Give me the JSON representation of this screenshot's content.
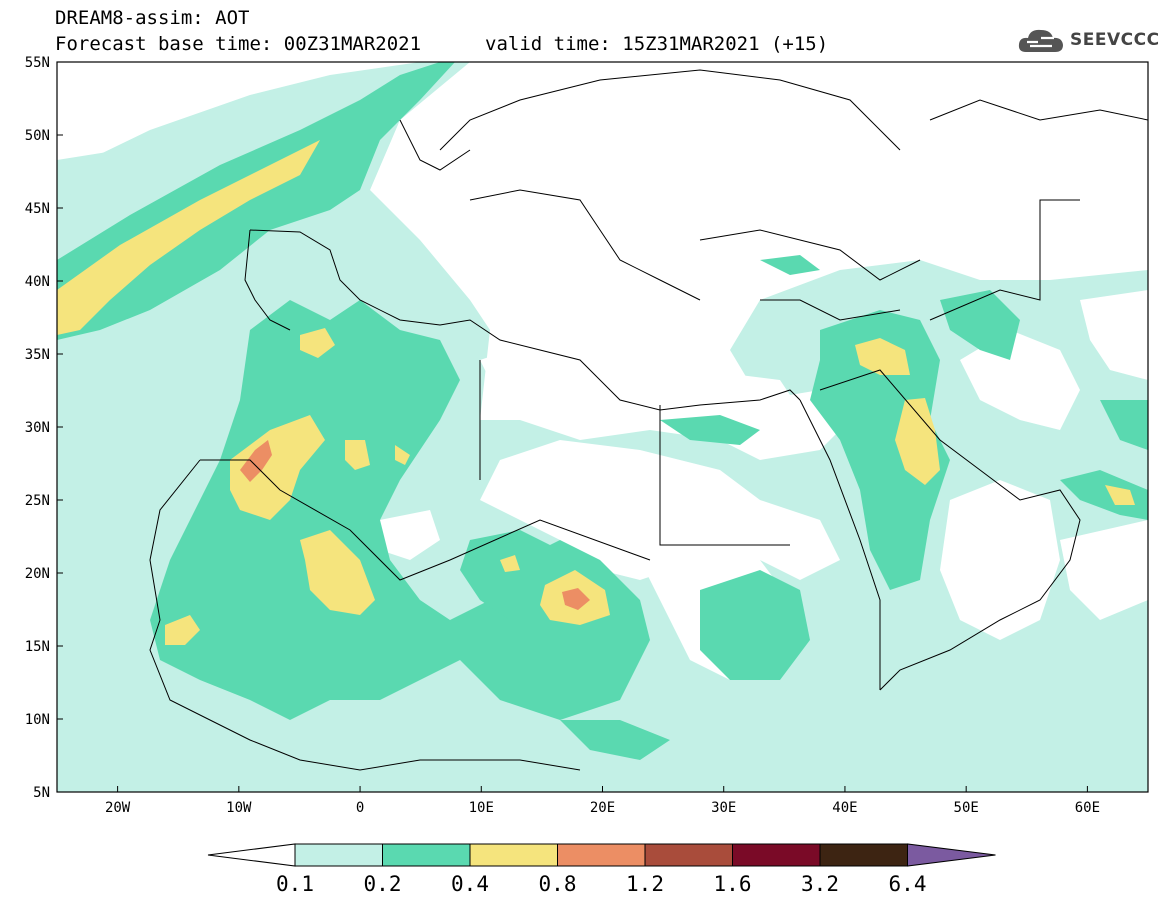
{
  "header": {
    "title": "DREAM8-assim: AOT",
    "base_time": "Forecast base time: 00Z31MAR2021",
    "valid_time": "valid time: 15Z31MAR2021 (+15)",
    "logo_text": "SEEVCCC"
  },
  "map": {
    "lat_labels": [
      "55N",
      "50N",
      "45N",
      "40N",
      "35N",
      "30N",
      "25N",
      "20N",
      "15N",
      "10N",
      "5N"
    ],
    "lon_labels": [
      "20W",
      "10W",
      "0",
      "10E",
      "20E",
      "30E",
      "40E",
      "50E",
      "60E"
    ],
    "lon_range": [
      -25,
      65
    ],
    "lat_range": [
      5,
      55
    ]
  },
  "legend": {
    "levels": [
      "0.1",
      "0.2",
      "0.4",
      "0.8",
      "1.2",
      "1.6",
      "3.2",
      "6.4"
    ],
    "colors": [
      "#c3f0e6",
      "#5ad9b0",
      "#f5e47d",
      "#ec8e64",
      "#a94c3b",
      "#7a0a27",
      "#3d2412",
      "#7b5aa0"
    ]
  },
  "colors": {
    "c1": "#c3f0e6",
    "c2": "#5ad9b0",
    "c3": "#f5e47d",
    "c4": "#ec8e64"
  }
}
